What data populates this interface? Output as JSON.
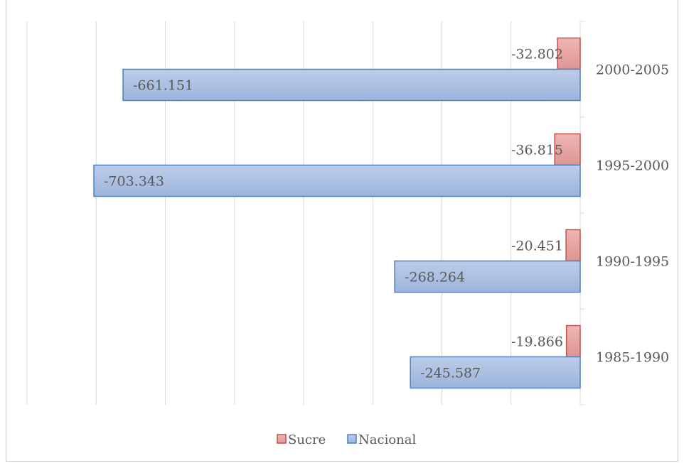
{
  "chart_data": {
    "type": "bar",
    "orientation": "horizontal",
    "categories": [
      "1985-1990",
      "1990-1995",
      "1995-2000",
      "2000-2005"
    ],
    "series": [
      {
        "name": "Sucre",
        "values": [
          -19866,
          -20451,
          -36815,
          -32802
        ],
        "labels": [
          "-19.866",
          "-20.451",
          "-36.815",
          "-32.802"
        ]
      },
      {
        "name": "Nacional",
        "values": [
          -245587,
          -268264,
          -703343,
          -661151
        ],
        "labels": [
          "-245.587",
          "-268.264",
          "-703.343",
          "-661.151"
        ]
      }
    ],
    "title": "",
    "xlabel": "",
    "ylabel": "",
    "xlim": [
      -800000,
      0
    ],
    "grid": true,
    "legend": "bottom"
  },
  "colors": {
    "sucre_fill": "#e8a4a2",
    "sucre_stroke": "#c0504d",
    "nacional_fill": "#a7bde0",
    "nacional_stroke": "#4f81bd",
    "grid": "#d9d9d9"
  }
}
